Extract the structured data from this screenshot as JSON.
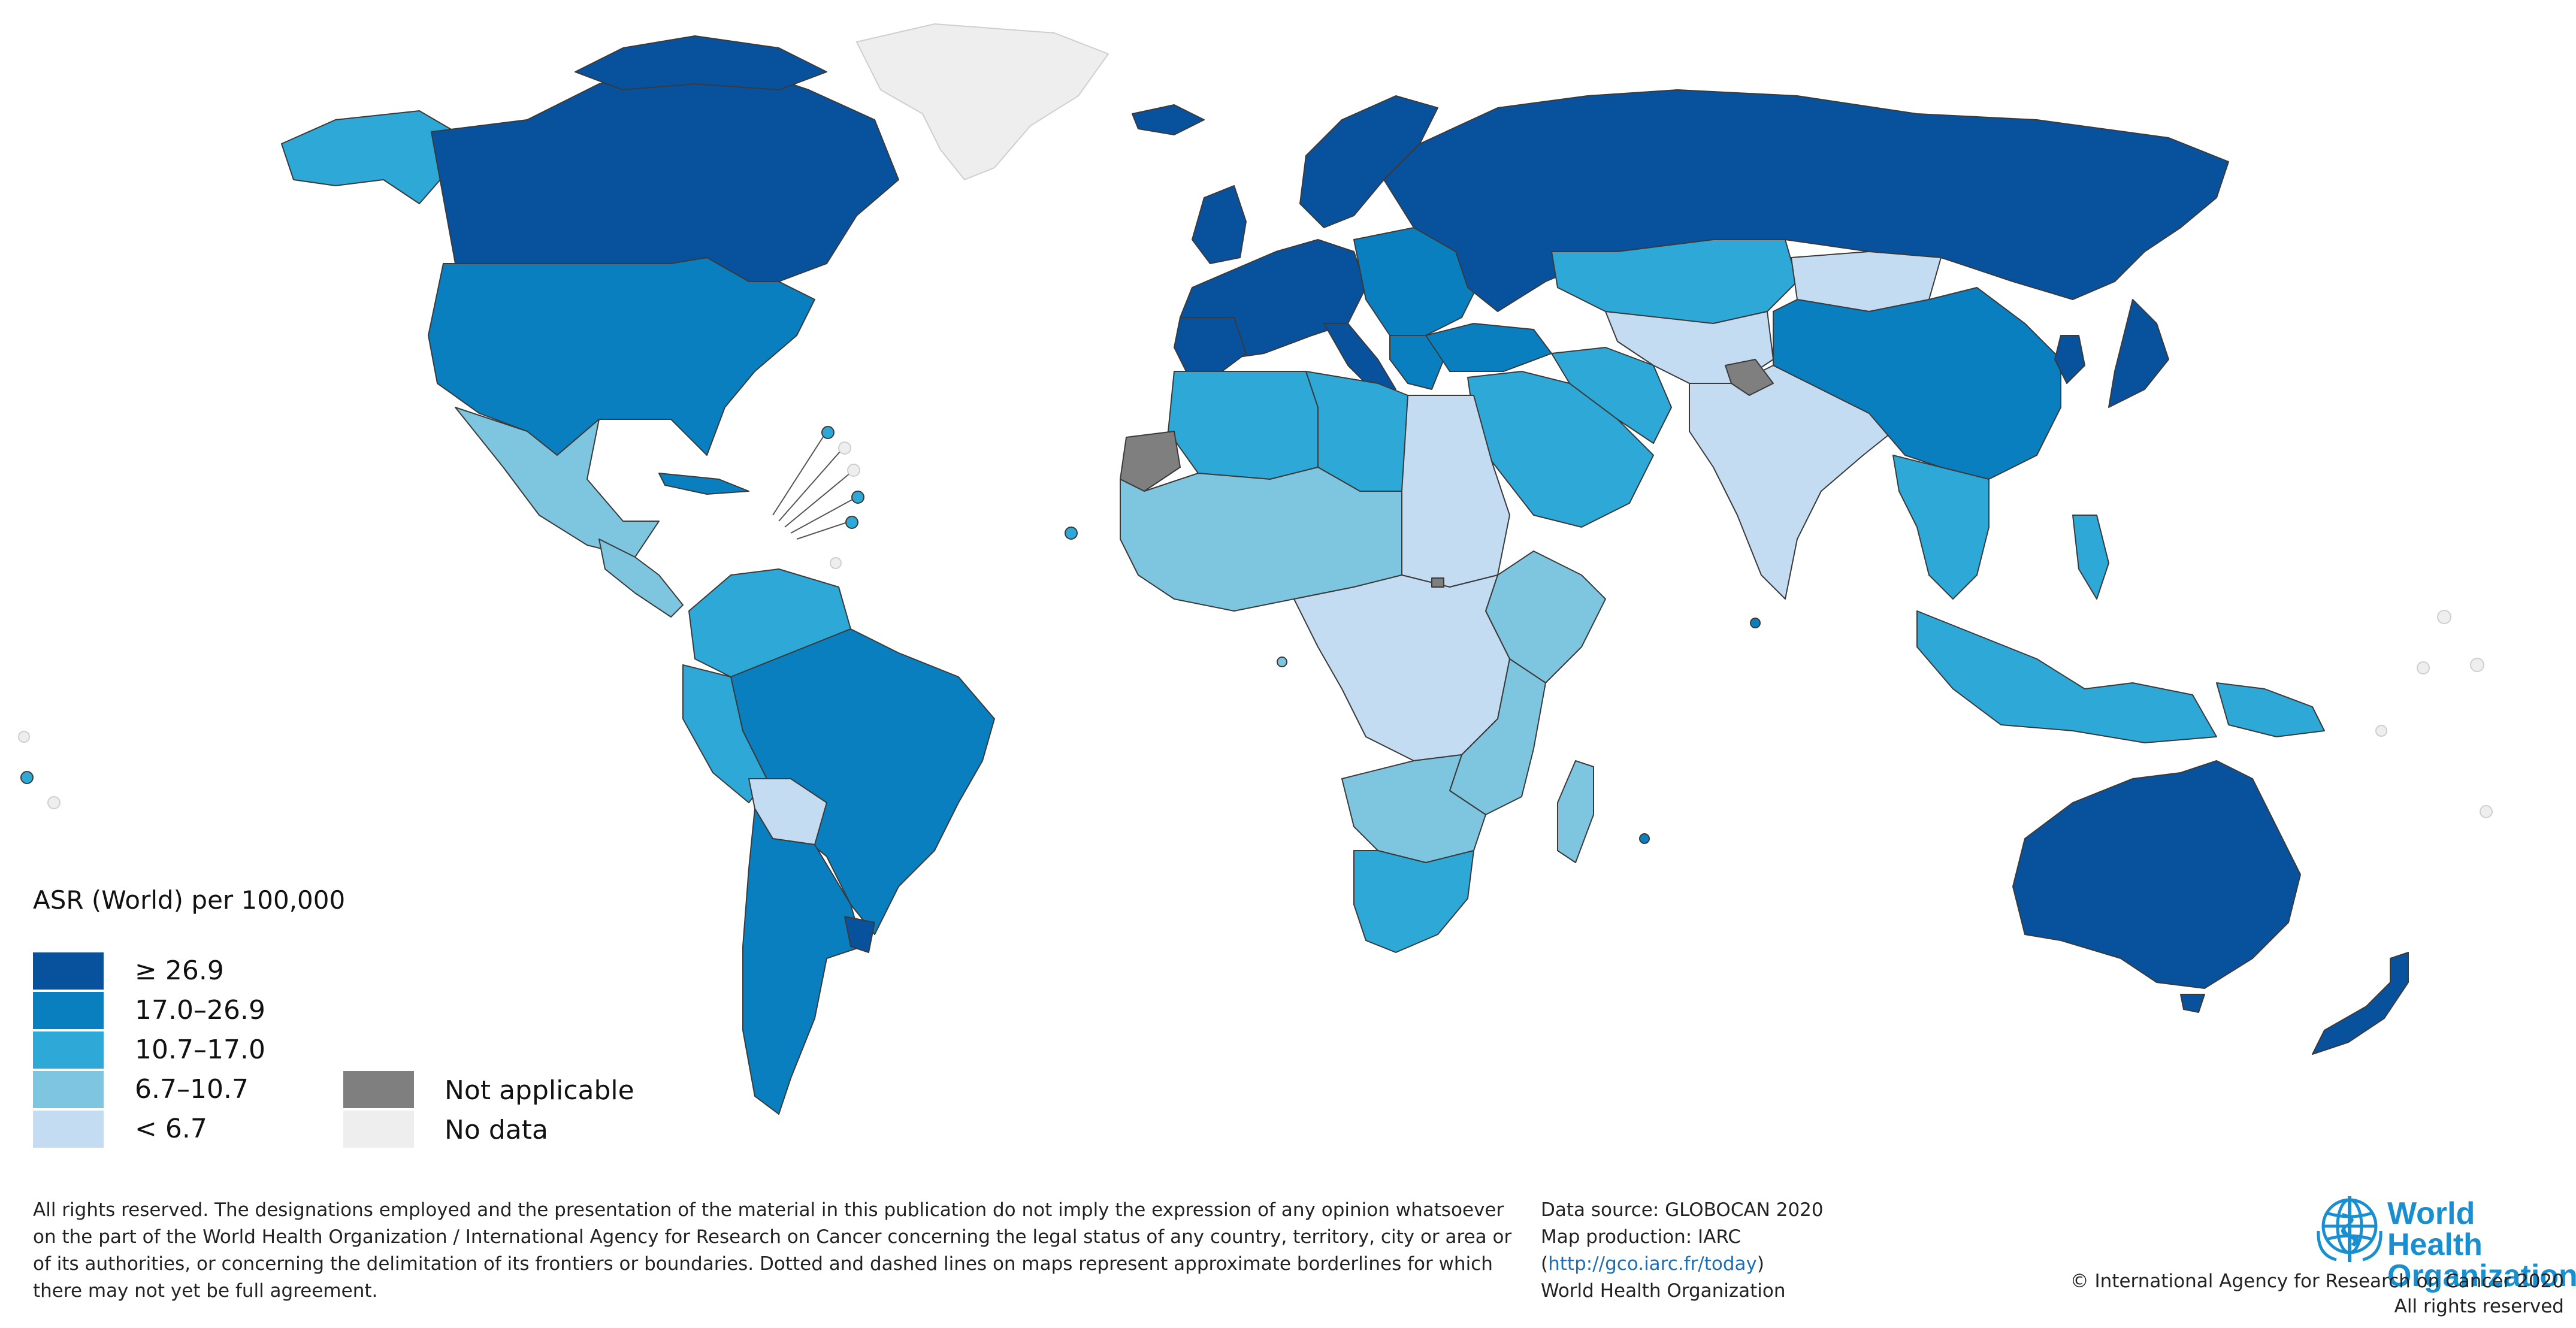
{
  "legend": {
    "title": "ASR (World) per 100,000",
    "classes": [
      {
        "label": "≥ 26.9",
        "color": "#08519c"
      },
      {
        "label": "17.0–26.9",
        "color": "#0a7fc0"
      },
      {
        "label": "10.7–17.0",
        "color": "#2ea8d6"
      },
      {
        "label": "6.7–10.7",
        "color": "#7ec6e0"
      },
      {
        "label": "< 6.7",
        "color": "#c3dcf2"
      }
    ],
    "special": [
      {
        "label": "Not applicable",
        "color": "#7f7f7f"
      },
      {
        "label": "No data",
        "color": "#eeeeee"
      }
    ]
  },
  "footer": {
    "disclaimer": "All rights reserved. The designations employed and the presentation of the material in this publication do not imply the expression of any opinion whatsoever on the part of the World Health Organization / International Agency for Research on Cancer concerning the legal status of any country, territory, city or area or of its authorities, or concerning the delimitation of its frontiers or boundaries. Dotted and dashed lines on maps represent approximate borderlines for which there may not yet be full agreement.",
    "source_line1": "Data source: GLOBOCAN 2020",
    "source_line2": "Map production: IARC",
    "source_link": "http://gco.iarc.fr/today",
    "source_line4": "World Health Organization",
    "org_line1": "World Health",
    "org_line2": "Organization",
    "copyright1": "© International Agency for Research on Cancer 2020",
    "copyright2": "All rights reserved"
  },
  "icons": {
    "logo": "who-emblem-icon"
  }
}
